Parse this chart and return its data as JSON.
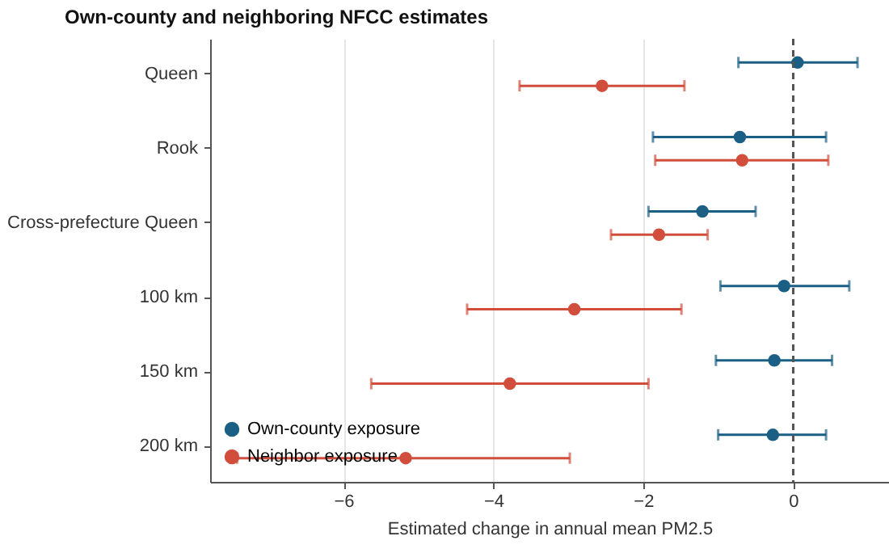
{
  "chart_data": {
    "type": "scatter",
    "title": "Own-county and neighboring NFCC estimates",
    "xlabel": "Estimated change in annual mean PM2.5",
    "orientation": "horizontal",
    "categories": [
      "Queen",
      "Rook",
      "Cross-prefecture Queen",
      "100 km",
      "150 km",
      "200 km"
    ],
    "series": [
      {
        "name": "Own-county exposure",
        "color": "#1b5f85",
        "values": [
          0.06,
          -0.71,
          -1.21,
          -0.12,
          -0.25,
          -0.27
        ],
        "errors": [
          [
            -0.73,
            0.86
          ],
          [
            -1.87,
            0.44
          ],
          [
            -1.93,
            -0.5
          ],
          [
            -0.97,
            0.75
          ],
          [
            -1.03,
            0.52
          ],
          [
            -1.0,
            0.44
          ]
        ]
      },
      {
        "name": "Neighbor exposure",
        "color": "#d04e3b",
        "values": [
          -2.55,
          -0.68,
          -1.79,
          -2.92,
          -3.78,
          -5.17
        ],
        "errors": [
          [
            -3.65,
            -1.45
          ],
          [
            -1.84,
            0.47
          ],
          [
            -2.43,
            -1.14
          ],
          [
            -4.35,
            -1.49
          ],
          [
            -5.63,
            -1.93
          ],
          [
            -7.42,
            -2.98
          ]
        ]
      }
    ],
    "xlim": [
      -7.78,
      1.28
    ],
    "xticks": [
      -6,
      -4,
      -2,
      0
    ],
    "grid": "x",
    "legend": "bottom left",
    "marker": "circle",
    "ref_lines": [
      {
        "axis": "x",
        "value": 0,
        "line_style": "dashed",
        "color": "#555555"
      }
    ]
  }
}
